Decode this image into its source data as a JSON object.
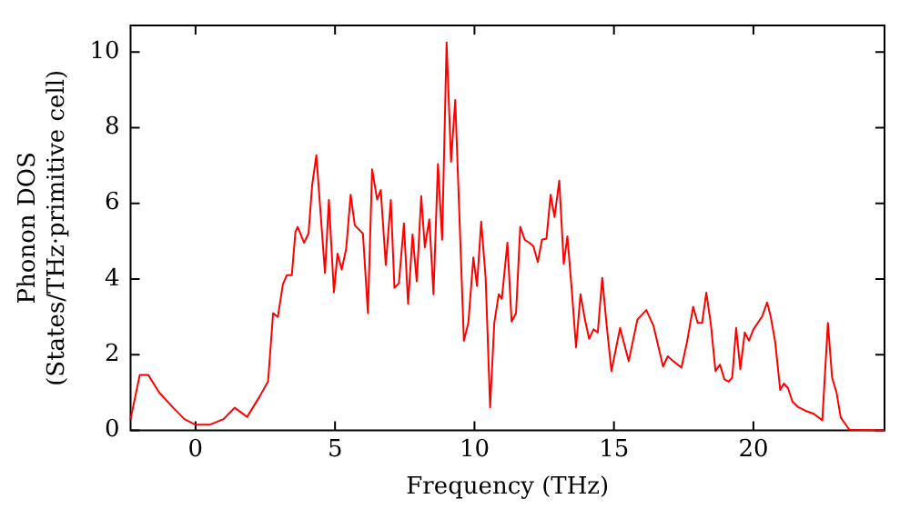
{
  "chart_data": {
    "type": "line",
    "xlabel": "Frequency (THz)",
    "ylabel": "Phonon DOS\n(States/THz·primitive cell)",
    "xlim": [
      -2.33,
      24.7
    ],
    "ylim": [
      0,
      10.7
    ],
    "xticks": [
      0,
      5,
      10,
      15,
      20
    ],
    "yticks": [
      0,
      2,
      4,
      6,
      8,
      10
    ],
    "grid": false,
    "legend": false,
    "marker": "none",
    "line_style": "solid",
    "series": [
      {
        "color": "#ff0000",
        "x": [
          -2.33,
          -2.0,
          -1.7,
          -1.3,
          -0.8,
          -0.4,
          0,
          0.5,
          1.0,
          1.4,
          1.85,
          2.3,
          2.6,
          2.78,
          2.95,
          3.13,
          3.27,
          3.45,
          3.58,
          3.66,
          3.89,
          4.05,
          4.18,
          4.33,
          4.64,
          4.78,
          4.96,
          5.09,
          5.24,
          5.4,
          5.56,
          5.71,
          6.0,
          6.18,
          6.33,
          6.51,
          6.64,
          6.82,
          7.0,
          7.13,
          7.29,
          7.47,
          7.62,
          7.78,
          7.93,
          8.09,
          8.22,
          8.38,
          8.53,
          8.69,
          8.84,
          9.0,
          9.16,
          9.31,
          9.62,
          9.78,
          9.96,
          10.09,
          10.24,
          10.4,
          10.56,
          10.71,
          10.87,
          10.98,
          11.18,
          11.33,
          11.49,
          11.64,
          11.8,
          11.96,
          12.11,
          12.27,
          12.42,
          12.58,
          12.73,
          12.87,
          13.04,
          13.2,
          13.33,
          13.49,
          13.64,
          13.8,
          13.96,
          14.11,
          14.27,
          14.42,
          14.58,
          14.73,
          14.91,
          15.22,
          15.53,
          15.84,
          16.16,
          16.42,
          16.76,
          16.93,
          17.13,
          17.42,
          17.62,
          17.84,
          18.0,
          18.16,
          18.31,
          18.47,
          18.64,
          18.8,
          18.96,
          19.11,
          19.24,
          19.38,
          19.53,
          19.69,
          19.84,
          20.0,
          20.31,
          20.49,
          20.62,
          20.78,
          20.96,
          21.09,
          21.24,
          21.4,
          21.62,
          21.87,
          22.16,
          22.47,
          22.67,
          22.82,
          22.98,
          23.13,
          23.44,
          24.7
        ],
        "values": [
          0.3,
          1.47,
          1.47,
          1.0,
          0.6,
          0.3,
          0.15,
          0.15,
          0.3,
          0.6,
          0.36,
          0.9,
          1.3,
          3.1,
          3.0,
          3.86,
          4.1,
          4.1,
          5.24,
          5.38,
          4.96,
          5.2,
          6.48,
          7.27,
          4.16,
          6.09,
          3.65,
          4.67,
          4.25,
          4.8,
          6.23,
          5.42,
          5.2,
          3.1,
          6.9,
          6.1,
          6.35,
          4.37,
          6.09,
          3.77,
          3.89,
          5.47,
          3.35,
          5.18,
          3.94,
          6.19,
          4.84,
          5.58,
          3.6,
          7.04,
          5.04,
          10.25,
          7.1,
          8.73,
          2.37,
          2.84,
          4.57,
          3.82,
          5.52,
          4.03,
          0.61,
          2.84,
          3.6,
          3.48,
          4.96,
          2.88,
          3.1,
          5.38,
          5.04,
          4.96,
          4.87,
          4.45,
          5.04,
          5.07,
          6.23,
          5.64,
          6.6,
          4.4,
          5.13,
          3.69,
          2.2,
          3.6,
          2.93,
          2.42,
          2.67,
          2.59,
          4.03,
          2.84,
          1.57,
          2.71,
          1.83,
          2.93,
          3.18,
          2.76,
          1.69,
          1.96,
          1.83,
          1.66,
          2.34,
          3.27,
          2.84,
          2.84,
          3.64,
          2.84,
          1.57,
          1.74,
          1.35,
          1.29,
          1.4,
          2.71,
          1.62,
          2.59,
          2.37,
          2.67,
          3.01,
          3.38,
          3.01,
          2.34,
          1.07,
          1.24,
          1.12,
          0.76,
          0.61,
          0.52,
          0.44,
          0.27,
          2.84,
          1.4,
          1.0,
          0.34,
          0.02,
          0
        ]
      }
    ]
  }
}
